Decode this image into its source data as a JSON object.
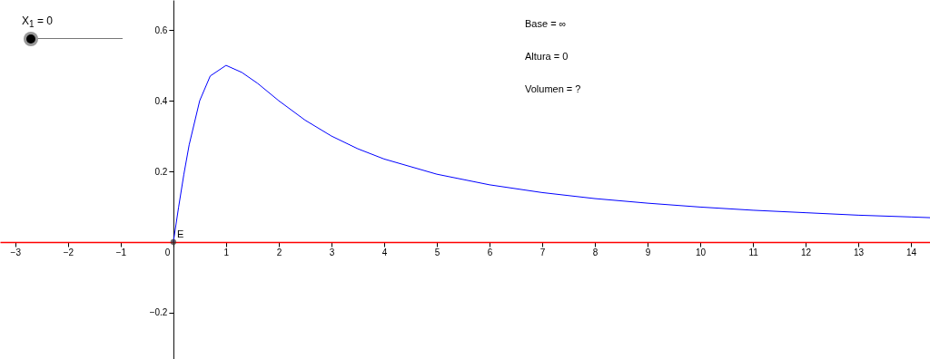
{
  "chart_data": {
    "type": "line",
    "xlim": [
      -3.29,
      14.36
    ],
    "ylim": [
      -0.331,
      0.685
    ],
    "xticks": [
      -3,
      -2,
      -1,
      0,
      1,
      2,
      3,
      4,
      5,
      6,
      7,
      8,
      9,
      10,
      11,
      12,
      13,
      14
    ],
    "yticks": [
      -0.2,
      0.2,
      0.4,
      0.6
    ],
    "annotations": [
      "X$_{1}$ = 0",
      "Base = ∞",
      "Altura = 0",
      "Volumen = ?"
    ],
    "series": [
      {
        "color": "#0000ff",
        "x": [
          0,
          0.1,
          0.2,
          0.3,
          0.5,
          0.7,
          1,
          1.3,
          1.6,
          2,
          2.5,
          3,
          3.5,
          4,
          5,
          6,
          7,
          8,
          9,
          10,
          11,
          12,
          13,
          14,
          14.36
        ],
        "values": [
          0,
          0.099,
          0.192,
          0.275,
          0.4,
          0.47,
          0.5,
          0.48,
          0.449,
          0.4,
          0.345,
          0.3,
          0.264,
          0.235,
          0.192,
          0.162,
          0.14,
          0.123,
          0.11,
          0.099,
          0.09,
          0.083,
          0.076,
          0.071,
          0.069
        ]
      },
      {
        "type": "scatter",
        "name": "E",
        "color": "#333333",
        "x": [
          0
        ],
        "values": [
          0
        ]
      }
    ],
    "marker": "none",
    "grid": false
  }
}
